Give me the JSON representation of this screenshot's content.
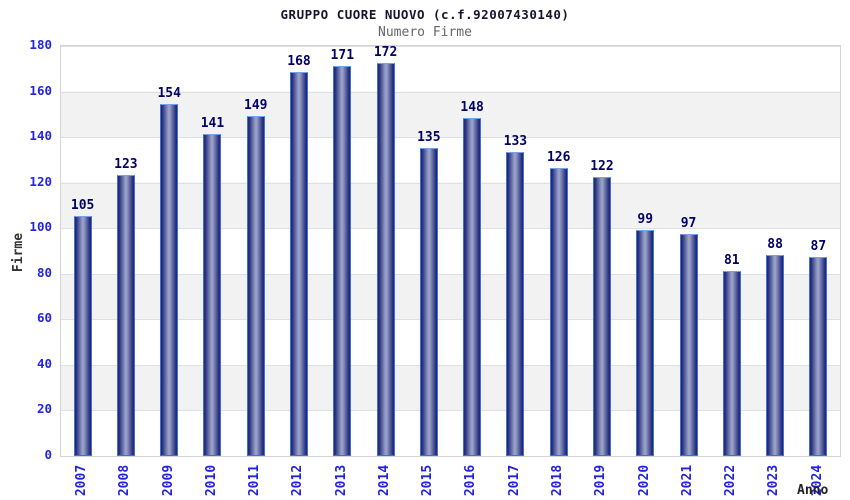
{
  "chart_data": {
    "type": "bar",
    "title": "GRUPPO CUORE NUOVO (c.f.92007430140)",
    "subtitle": "Numero Firme",
    "xlabel": "Anno",
    "ylabel": "Firme",
    "categories": [
      "2007",
      "2008",
      "2009",
      "2010",
      "2011",
      "2012",
      "2013",
      "2014",
      "2015",
      "2016",
      "2017",
      "2018",
      "2019",
      "2020",
      "2021",
      "2022",
      "2023",
      "2024"
    ],
    "values": [
      105,
      123,
      154,
      141,
      149,
      168,
      171,
      172,
      135,
      148,
      133,
      126,
      122,
      99,
      97,
      81,
      88,
      87
    ],
    "ylim": [
      0,
      180
    ],
    "ytick_step": 20,
    "yticks": [
      0,
      20,
      40,
      60,
      80,
      100,
      120,
      140,
      160,
      180
    ],
    "legend": "none",
    "grid": "horizontal gridlines with alternating white/gray bands",
    "colors": {
      "bar_edge_dark": "#1f266f",
      "bar_center_light": "#9aa1c9",
      "bar_outline": "#3f6fdd",
      "tick_label": "#2323e0",
      "value_label": "#000066",
      "title": "#15152e",
      "subtitle": "#666666",
      "band_gray": "#f2f2f2",
      "gridline": "#e0e0e0",
      "plot_border": "#d4d4d4"
    }
  }
}
